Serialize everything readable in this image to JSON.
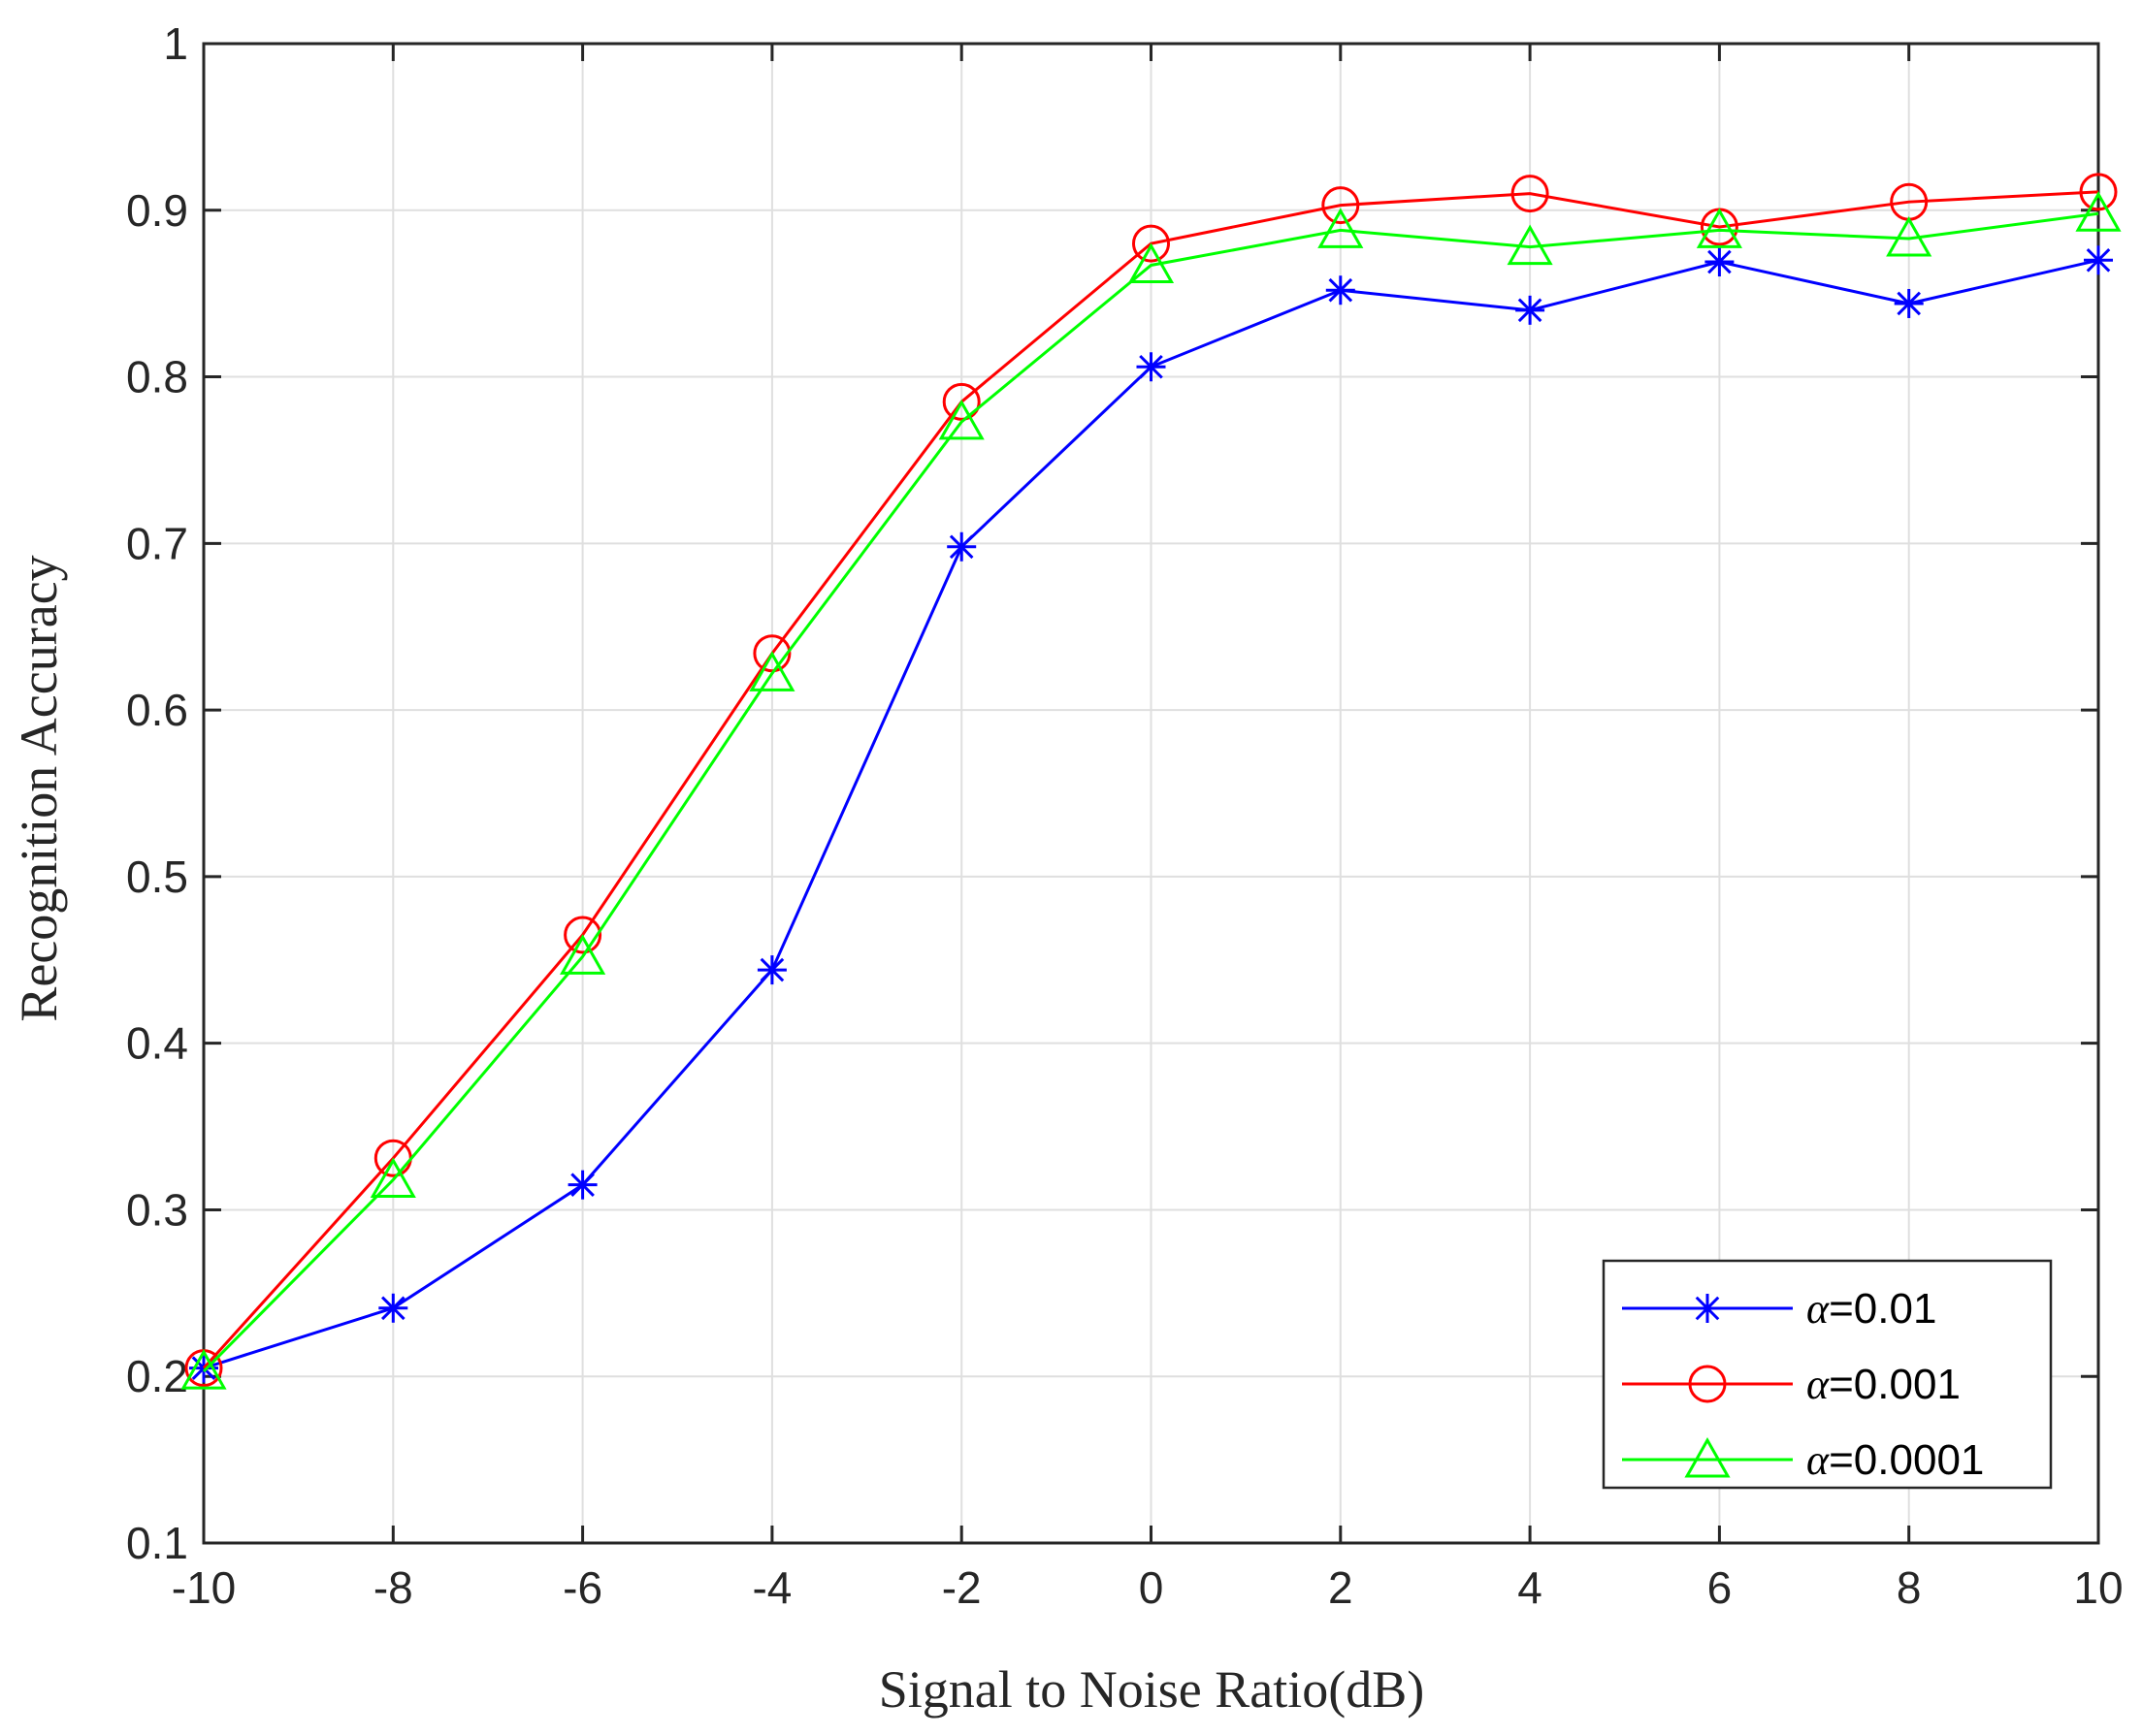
{
  "chart_data": {
    "type": "line",
    "title": "",
    "xlabel": "Signal to Noise Ratio(dB)",
    "ylabel": "Recognition Accuracy",
    "xlim": [
      -10,
      10
    ],
    "ylim": [
      0.1,
      1
    ],
    "x": [
      -10,
      -8,
      -6,
      -4,
      -2,
      0,
      2,
      4,
      6,
      8,
      10
    ],
    "x_ticks": [
      -10,
      -8,
      -6,
      -4,
      -2,
      0,
      2,
      4,
      6,
      8,
      10
    ],
    "x_tick_labels": [
      "-10",
      "-8",
      "-6",
      "-4",
      "-2",
      "0",
      "2",
      "4",
      "6",
      "8",
      "10"
    ],
    "y_ticks": [
      0.1,
      0.2,
      0.3,
      0.4,
      0.5,
      0.6,
      0.7,
      0.8,
      0.9,
      1
    ],
    "y_tick_labels": [
      "0.1",
      "0.2",
      "0.3",
      "0.4",
      "0.5",
      "0.6",
      "0.7",
      "0.8",
      "0.9",
      "1"
    ],
    "grid": true,
    "legend_position": "bottom-right",
    "series": [
      {
        "name": "α=0.01",
        "legend_symbol": "α",
        "legend_value": "=0.01",
        "color": "#0000ff",
        "marker": "asterisk",
        "values": [
          0.205,
          0.241,
          0.315,
          0.444,
          0.698,
          0.806,
          0.852,
          0.84,
          0.869,
          0.844,
          0.87
        ]
      },
      {
        "name": "α=0.001",
        "legend_symbol": "α",
        "legend_value": "=0.001",
        "color": "#ff0000",
        "marker": "circle",
        "values": [
          0.205,
          0.331,
          0.465,
          0.634,
          0.785,
          0.88,
          0.903,
          0.91,
          0.89,
          0.905,
          0.911
        ]
      },
      {
        "name": "α=0.0001",
        "legend_symbol": "α",
        "legend_value": "=0.0001",
        "color": "#00ff00",
        "marker": "triangle",
        "values": [
          0.203,
          0.318,
          0.452,
          0.622,
          0.773,
          0.867,
          0.888,
          0.878,
          0.888,
          0.883,
          0.898
        ]
      }
    ]
  }
}
